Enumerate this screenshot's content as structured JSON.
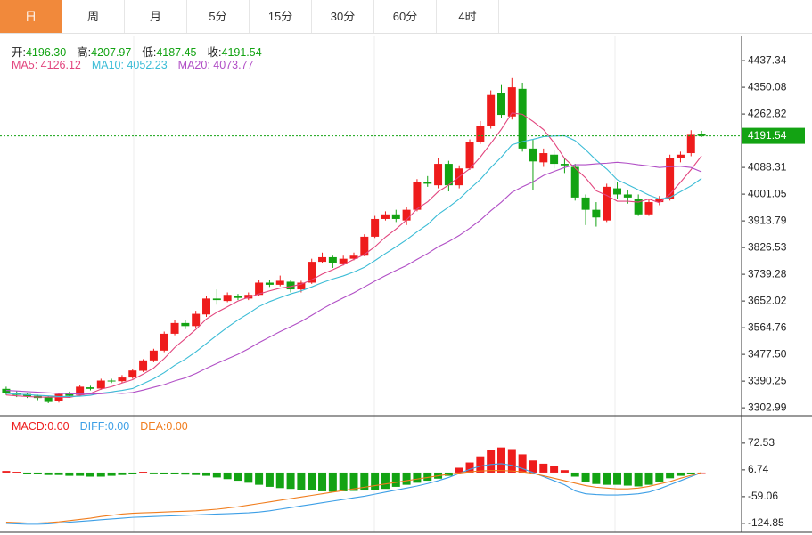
{
  "tabs": [
    "日",
    "周",
    "月",
    "5分",
    "15分",
    "30分",
    "60分",
    "4时"
  ],
  "active_tab": 0,
  "chart_data": [
    {
      "type": "candlestick",
      "summary_labels": [
        "开:",
        "高:",
        "低:",
        "收:"
      ],
      "summary_values": [
        "4196.30",
        "4207.97",
        "4187.45",
        "4191.54"
      ],
      "up_color": "#ee1c1c",
      "down_color": "#13a313",
      "open": [
        3365,
        3352,
        3348,
        3342,
        3338,
        3325,
        3350,
        3345,
        3370,
        3366,
        3392,
        3390,
        3402,
        3424,
        3458,
        3490,
        3545,
        3580,
        3570,
        3608,
        3660,
        3652,
        3668,
        3660,
        3672,
        3712,
        3705,
        3715,
        3690,
        3712,
        3780,
        3795,
        3772,
        3790,
        3800,
        3862,
        3920,
        3935,
        3915,
        3950,
        4040,
        4030,
        4100,
        4030,
        4085,
        4170,
        4225,
        4330,
        4255,
        4345,
        4150,
        4105,
        4130,
        4100,
        4090,
        3990,
        3950,
        3915,
        4020,
        4000,
        3985,
        3935,
        3975,
        3985,
        4120,
        4135,
        4196.3
      ],
      "high": [
        3372,
        3358,
        3352,
        3346,
        3342,
        3352,
        3356,
        3378,
        3375,
        3398,
        3398,
        3410,
        3430,
        3462,
        3496,
        3552,
        3590,
        3590,
        3620,
        3668,
        3690,
        3680,
        3675,
        3680,
        3720,
        3722,
        3735,
        3720,
        3718,
        3790,
        3810,
        3800,
        3800,
        3810,
        3870,
        3930,
        3945,
        3950,
        3960,
        4050,
        4060,
        4120,
        4110,
        4095,
        4180,
        4240,
        4340,
        4360,
        4380,
        4365,
        4180,
        4150,
        4145,
        4120,
        4100,
        4000,
        3975,
        4035,
        4040,
        4015,
        4000,
        3985,
        3995,
        4130,
        4140,
        4210,
        4207.97
      ],
      "low": [
        3345,
        3338,
        3335,
        3328,
        3318,
        3320,
        3338,
        3340,
        3360,
        3362,
        3384,
        3385,
        3398,
        3420,
        3452,
        3485,
        3540,
        3560,
        3565,
        3600,
        3640,
        3648,
        3655,
        3655,
        3668,
        3698,
        3700,
        3680,
        3680,
        3708,
        3775,
        3760,
        3768,
        3785,
        3798,
        3858,
        3915,
        3910,
        3900,
        3945,
        4025,
        4020,
        4010,
        4020,
        4080,
        4165,
        4215,
        4250,
        4245,
        4140,
        4015,
        4090,
        4085,
        4070,
        3980,
        3900,
        3895,
        3910,
        3985,
        3970,
        3930,
        3930,
        3965,
        3980,
        4105,
        4125,
        4187.45
      ],
      "close": [
        3350,
        3345,
        3340,
        3335,
        3322,
        3348,
        3342,
        3372,
        3365,
        3392,
        3390,
        3402,
        3425,
        3458,
        3490,
        3545,
        3580,
        3570,
        3610,
        3660,
        3655,
        3672,
        3662,
        3672,
        3712,
        3705,
        3718,
        3690,
        3712,
        3780,
        3795,
        3775,
        3790,
        3800,
        3862,
        3920,
        3935,
        3920,
        3950,
        4040,
        4035,
        4100,
        4030,
        4085,
        4170,
        4225,
        4325,
        4260,
        4350,
        4150,
        4108,
        4135,
        4100,
        4095,
        3990,
        3950,
        3925,
        4025,
        4000,
        3990,
        3935,
        3975,
        3985,
        4120,
        4130,
        4195,
        4191.54
      ],
      "series": [
        {
          "name": "MA5:",
          "last_label": "4126.12",
          "color": "#e2457e",
          "values": [
            3345,
            3342,
            3340,
            3338,
            3338,
            3338,
            3337,
            3344,
            3350,
            3364,
            3372,
            3384,
            3395,
            3413,
            3433,
            3464,
            3500,
            3529,
            3559,
            3593,
            3615,
            3633,
            3652,
            3664,
            3675,
            3685,
            3694,
            3699,
            3707,
            3721,
            3740,
            3754,
            3770,
            3788,
            3804,
            3829,
            3861,
            3887,
            3917,
            3953,
            3976,
            4009,
            4031,
            4058,
            4084,
            4122,
            4167,
            4213,
            4266,
            4262,
            4239,
            4212,
            4169,
            4118,
            4086,
            4054,
            4012,
            3997,
            3978,
            3978,
            3975,
            3985,
            3973,
            4001,
            4040,
            4081,
            4126.12
          ]
        },
        {
          "name": "MA10:",
          "last_label": "4052.23",
          "color": "#3bbcd6",
          "values": [
            3350,
            3348,
            3346,
            3344,
            3342,
            3340,
            3340,
            3341,
            3344,
            3351,
            3355,
            3360,
            3366,
            3382,
            3398,
            3418,
            3442,
            3462,
            3486,
            3513,
            3540,
            3566,
            3590,
            3611,
            3634,
            3650,
            3663,
            3675,
            3685,
            3698,
            3712,
            3724,
            3734,
            3747,
            3762,
            3784,
            3807,
            3829,
            3852,
            3878,
            3902,
            3935,
            3959,
            3985,
            4018,
            4049,
            4088,
            4122,
            4162,
            4173,
            4180,
            4189,
            4191,
            4192,
            4176,
            4146,
            4112,
            4083,
            4048,
            4032,
            4015,
            3998,
            3985,
            3990,
            4009,
            4028,
            4052.23
          ]
        },
        {
          "name": "MA20:",
          "last_label": "4073.77",
          "color": "#b14fc6",
          "values": [
            3360,
            3358,
            3356,
            3354,
            3352,
            3350,
            3349,
            3348,
            3348,
            3349,
            3352,
            3350,
            3353,
            3361,
            3370,
            3379,
            3391,
            3401,
            3415,
            3432,
            3448,
            3463,
            3478,
            3496,
            3516,
            3534,
            3552,
            3568,
            3585,
            3605,
            3626,
            3645,
            3662,
            3679,
            3698,
            3717,
            3735,
            3752,
            3768,
            3788,
            3807,
            3829,
            3846,
            3866,
            3890,
            3916,
            3947,
            3975,
            4007,
            4025,
            4041,
            4062,
            4075,
            4088,
            4097,
            4097,
            4100,
            4102,
            4105,
            4102,
            4097,
            4093,
            4088,
            4091,
            4092,
            4088,
            4073.77
          ]
        }
      ],
      "last_price": {
        "value": 4191.54,
        "label": "4191.54"
      },
      "ylim": [
        3283,
        4519
      ],
      "yticks": [
        4437.34,
        4350.08,
        4262.82,
        4088.31,
        4001.05,
        3913.79,
        3826.53,
        3739.28,
        3652.02,
        3564.76,
        {
          "value": 3477.5,
          "label": "3477.50"
        },
        3390.25,
        3302.99
      ]
    },
    {
      "type": "macd",
      "histogram": {
        "name": "MACD:",
        "last_label": "0.00",
        "up_color": "#ee1c1c",
        "down_color": "#13a313",
        "values": [
          4,
          2,
          -3,
          -4,
          -6,
          -6,
          -8,
          -8,
          -10,
          -10,
          -8,
          -6,
          -4,
          2,
          -2,
          -4,
          -3,
          -5,
          -6,
          -8,
          -12,
          -16,
          -20,
          -25,
          -30,
          -35,
          -38,
          -40,
          -42,
          -44,
          -46,
          -47,
          -46,
          -45,
          -44,
          -42,
          -40,
          -35,
          -30,
          -25,
          -20,
          -15,
          -8,
          12,
          25,
          40,
          55,
          62,
          58,
          45,
          30,
          22,
          16,
          6,
          -10,
          -22,
          -28,
          -30,
          -30,
          -32,
          -34,
          -30,
          -22,
          -14,
          -8,
          -3,
          0
        ]
      },
      "series": [
        {
          "name": "DIFF:",
          "last_label": "0.00",
          "color": "#3d9fe6",
          "values": [
            -125,
            -126,
            -127,
            -127,
            -126,
            -124,
            -122,
            -120,
            -118,
            -116,
            -114,
            -112,
            -110,
            -109,
            -108,
            -107,
            -106,
            -105,
            -104,
            -103,
            -102,
            -101,
            -100,
            -99,
            -97,
            -94,
            -90,
            -86,
            -82,
            -78,
            -74,
            -70,
            -66,
            -62,
            -58,
            -53,
            -48,
            -43,
            -38,
            -33,
            -27,
            -20,
            -12,
            -2,
            8,
            16,
            20,
            22,
            18,
            10,
            0,
            -10,
            -20,
            -30,
            -45,
            -52,
            -54,
            -55,
            -55,
            -54,
            -52,
            -48,
            -40,
            -30,
            -20,
            -10,
            0
          ]
        },
        {
          "name": "DEA:",
          "last_label": "0.00",
          "color": "#f07d1e",
          "values": [
            -122,
            -123,
            -124,
            -124,
            -123,
            -121,
            -118,
            -115,
            -112,
            -108,
            -105,
            -102,
            -100,
            -99,
            -98,
            -97,
            -96,
            -95,
            -94,
            -92,
            -90,
            -87,
            -84,
            -80,
            -76,
            -72,
            -68,
            -64,
            -60,
            -56,
            -52,
            -48,
            -44,
            -40,
            -36,
            -32,
            -28,
            -24,
            -20,
            -16,
            -12,
            -8,
            -4,
            -1,
            2,
            4,
            5,
            5,
            4,
            2,
            -2,
            -8,
            -14,
            -20,
            -26,
            -32,
            -36,
            -38,
            -40,
            -40,
            -38,
            -34,
            -28,
            -22,
            -14,
            -7,
            0
          ]
        }
      ],
      "ylim": [
        -147,
        138
      ],
      "yticks": [
        72.53,
        6.74,
        -59.06,
        -124.85
      ]
    }
  ]
}
